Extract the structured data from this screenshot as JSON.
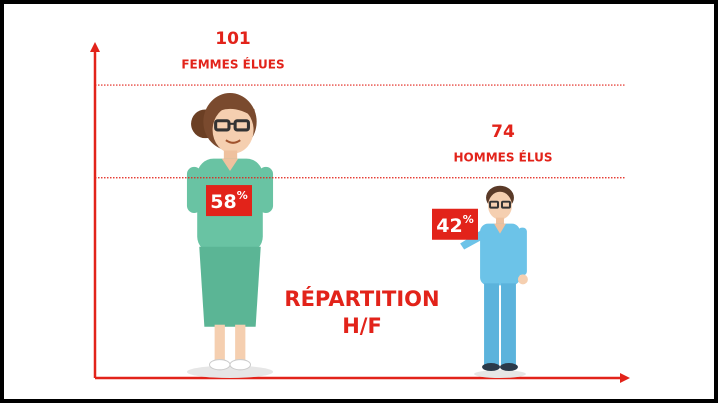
{
  "chart_data": {
    "type": "pictorial_bar",
    "title": "RÉPARTITION H/F",
    "categories": [
      "FEMMES ÉLUES",
      "HOMMES ÉLUS"
    ],
    "values": [
      101,
      74
    ],
    "percent_values": [
      58,
      42
    ],
    "percent_labels": [
      "58%",
      "42%"
    ],
    "color": "#e2231a",
    "ylim": [
      18,
      115
    ],
    "grid": true
  }
}
